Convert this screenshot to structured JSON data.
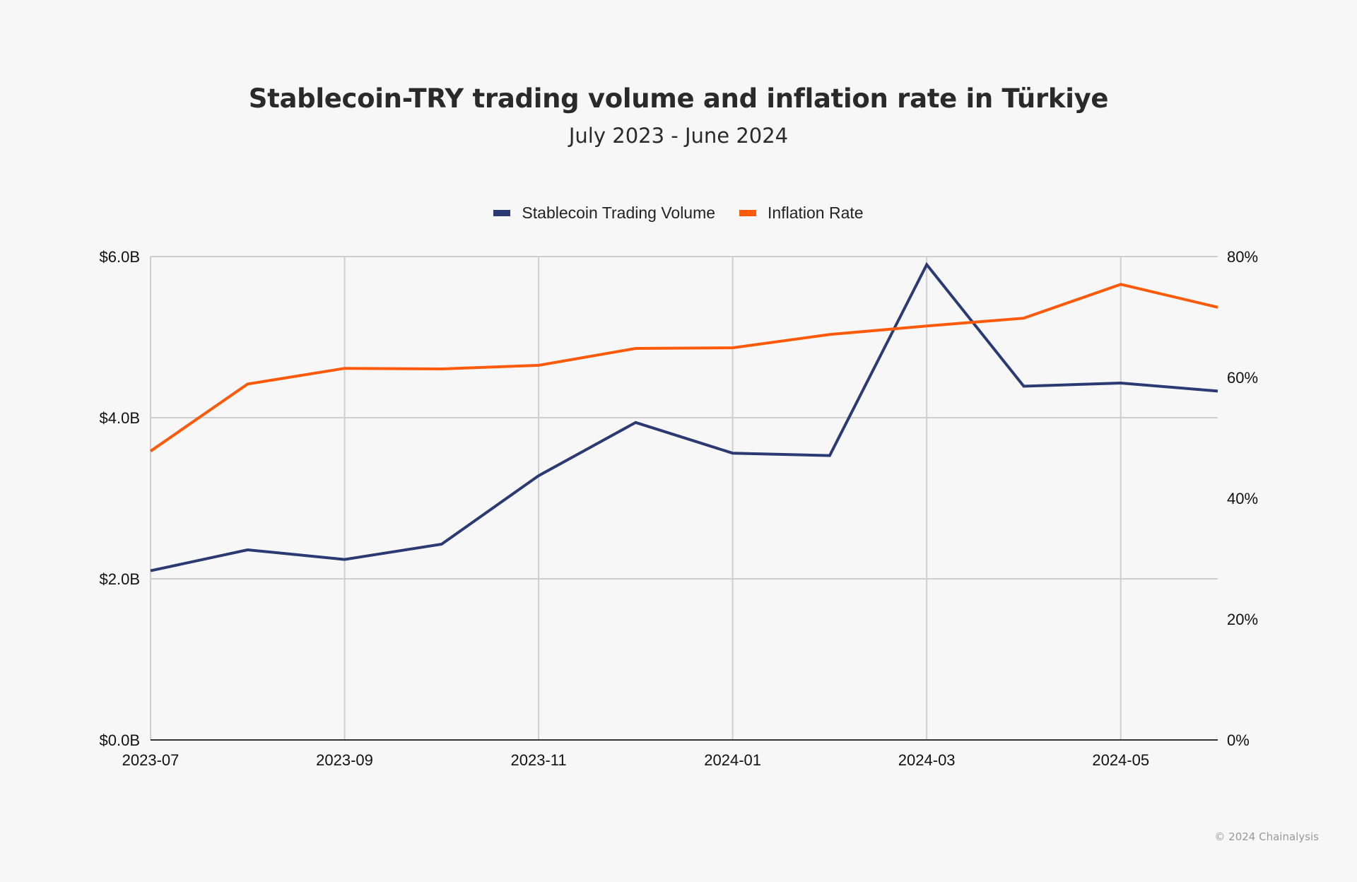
{
  "header": {
    "title": "Stablecoin-TRY trading volume and inflation rate in Türkiye",
    "subtitle": "July 2023 - June 2024"
  },
  "footer": {
    "copyright": "© 2024 Chainalysis"
  },
  "colors": {
    "background": "#f7f7f7",
    "volume": "#2b3a72",
    "inflation": "#ff5a0a",
    "grid": "#cfcfcf",
    "axis": "#333333"
  },
  "chart_data": {
    "type": "line",
    "title": "Stablecoin-TRY trading volume and inflation rate in Türkiye",
    "subtitle": "July 2023 - June 2024",
    "xlabel": "",
    "x": [
      "2023-07",
      "2023-08",
      "2023-09",
      "2023-10",
      "2023-11",
      "2023-12",
      "2024-01",
      "2024-02",
      "2024-03",
      "2024-04",
      "2024-05",
      "2024-06"
    ],
    "x_tick_labels": [
      "2023-07",
      "2023-09",
      "2023-11",
      "2024-01",
      "2024-03",
      "2024-05"
    ],
    "series": [
      {
        "name": "Stablecoin Trading Volume",
        "axis": "left",
        "unit": "USD billions",
        "color": "#2b3a72",
        "values": [
          2.1,
          2.36,
          2.24,
          2.43,
          3.28,
          3.94,
          3.56,
          3.53,
          5.9,
          4.39,
          4.43,
          4.33
        ]
      },
      {
        "name": "Inflation Rate",
        "axis": "right",
        "unit": "percent",
        "color": "#ff5a0a",
        "values": [
          47.8,
          58.9,
          61.5,
          61.4,
          62.0,
          64.8,
          64.9,
          67.1,
          68.5,
          69.8,
          75.4,
          71.6
        ]
      }
    ],
    "y_left": {
      "label": "",
      "ylim": [
        0,
        6
      ],
      "ticks": [
        0,
        2,
        4,
        6
      ],
      "tick_labels": [
        "$0.0B",
        "$2.0B",
        "$4.0B",
        "$6.0B"
      ]
    },
    "y_right": {
      "label": "",
      "ylim": [
        0,
        80
      ],
      "ticks": [
        0,
        20,
        40,
        60,
        80
      ],
      "tick_labels": [
        "0%",
        "20%",
        "40%",
        "60%",
        "80%"
      ]
    },
    "grid": true,
    "legend": {
      "position": "top-center",
      "entries": [
        "Stablecoin Trading Volume",
        "Inflation Rate"
      ]
    }
  }
}
